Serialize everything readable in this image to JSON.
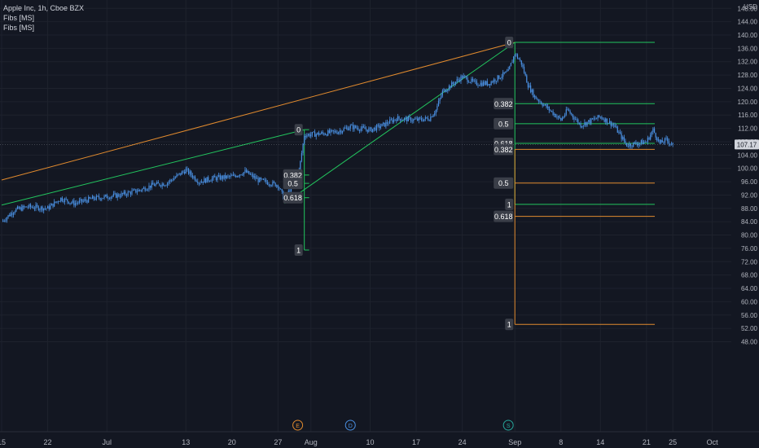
{
  "legend": {
    "symbol": "Apple Inc, 1h, Cboe BZX",
    "studies": [
      "Fibs [MS]",
      "Fibs [MS]"
    ]
  },
  "colors": {
    "background": "#131722",
    "candle": "#4a90e2",
    "fib_green": "#22c55e",
    "fib_orange": "#e08a2e",
    "label_bg": "#3a3e48",
    "axis_text": "#b2b5be",
    "price_tag_bg": "#d1d4dc"
  },
  "axis": {
    "currency": "USD",
    "last_price_label": "107.17",
    "y_ticks": [
      "148.00",
      "144.00",
      "140.00",
      "136.00",
      "132.00",
      "128.00",
      "124.00",
      "120.00",
      "116.00",
      "112.00",
      "108.00",
      "104.00",
      "100.00",
      "96.00",
      "92.00",
      "88.00",
      "84.00",
      "80.00",
      "76.00",
      "72.00",
      "68.00",
      "64.00",
      "60.00",
      "56.00",
      "52.00",
      "48.00"
    ],
    "x_ticks": [
      "15",
      "22",
      "Jul",
      "13",
      "20",
      "27",
      "Aug",
      "10",
      "17",
      "24",
      "Sep",
      "8",
      "14",
      "21",
      "25",
      "Oct"
    ]
  },
  "event_markers": [
    {
      "letter": "E",
      "date": "Jul 30",
      "color": "#e08a2e"
    },
    {
      "letter": "D",
      "date": "Aug 7",
      "color": "#4a90e2"
    },
    {
      "letter": "S",
      "date": "Aug 31",
      "color": "#26a69a"
    }
  ],
  "fib_labels": {
    "set1": {
      "zero": "0",
      "l382": "0.382",
      "l5": "0.5",
      "l618": "0.618",
      "one": "1"
    },
    "set2_green": {
      "zero": "0",
      "l382": "0.382",
      "l5": "0.5",
      "l618": "0.618",
      "one": "1"
    },
    "set2_orange": {
      "l382": "0.382",
      "l5": "0.5",
      "l618": "0.618",
      "one": "1"
    }
  },
  "chart_data": {
    "type": "line",
    "instrument": "Apple Inc, 1h, Cboe BZX",
    "ylabel": "USD",
    "ylim": [
      46,
      148
    ],
    "x_range": [
      "Jun 15",
      "Oct 3"
    ],
    "grid": true,
    "price_path": [
      {
        "x": "Jun 15",
        "y": 84.0
      },
      {
        "x": "Jun 17",
        "y": 87.5
      },
      {
        "x": "Jun 19",
        "y": 88.5
      },
      {
        "x": "Jun 22",
        "y": 88.0
      },
      {
        "x": "Jun 24",
        "y": 91.0
      },
      {
        "x": "Jun 26",
        "y": 89.5
      },
      {
        "x": "Jun 29",
        "y": 91.0
      },
      {
        "x": "Jul 1",
        "y": 91.5
      },
      {
        "x": "Jul 3",
        "y": 92.0
      },
      {
        "x": "Jul 6",
        "y": 93.5
      },
      {
        "x": "Jul 8",
        "y": 95.0
      },
      {
        "x": "Jul 10",
        "y": 95.5
      },
      {
        "x": "Jul 13",
        "y": 99.5
      },
      {
        "x": "Jul 15",
        "y": 96.0
      },
      {
        "x": "Jul 17",
        "y": 97.0
      },
      {
        "x": "Jul 20",
        "y": 97.5
      },
      {
        "x": "Jul 22",
        "y": 99.0
      },
      {
        "x": "Jul 24",
        "y": 96.5
      },
      {
        "x": "Jul 27",
        "y": 95.0
      },
      {
        "x": "Jul 28",
        "y": 90.5
      },
      {
        "x": "Jul 29",
        "y": 94.5
      },
      {
        "x": "Jul 30",
        "y": 96.5
      },
      {
        "x": "Jul 31",
        "y": 110.0
      },
      {
        "x": "Aug 3",
        "y": 110.5
      },
      {
        "x": "Aug 5",
        "y": 111.0
      },
      {
        "x": "Aug 7",
        "y": 112.5
      },
      {
        "x": "Aug 10",
        "y": 111.5
      },
      {
        "x": "Aug 12",
        "y": 113.0
      },
      {
        "x": "Aug 14",
        "y": 115.0
      },
      {
        "x": "Aug 17",
        "y": 114.5
      },
      {
        "x": "Aug 19",
        "y": 115.0
      },
      {
        "x": "Aug 20",
        "y": 117.5
      },
      {
        "x": "Aug 21",
        "y": 123.0
      },
      {
        "x": "Aug 24",
        "y": 127.5
      },
      {
        "x": "Aug 26",
        "y": 125.5
      },
      {
        "x": "Aug 28",
        "y": 125.5
      },
      {
        "x": "Aug 31",
        "y": 129.0
      },
      {
        "x": "Sep 1",
        "y": 134.5
      },
      {
        "x": "Sep 2",
        "y": 131.5
      },
      {
        "x": "Sep 3",
        "y": 125.0
      },
      {
        "x": "Sep 4",
        "y": 121.5
      },
      {
        "x": "Sep 8",
        "y": 114.5
      },
      {
        "x": "Sep 9",
        "y": 117.5
      },
      {
        "x": "Sep 11",
        "y": 113.0
      },
      {
        "x": "Sep 14",
        "y": 115.5
      },
      {
        "x": "Sep 16",
        "y": 113.0
      },
      {
        "x": "Sep 18",
        "y": 107.0
      },
      {
        "x": "Sep 21",
        "y": 108.0
      },
      {
        "x": "Sep 22",
        "y": 111.5
      },
      {
        "x": "Sep 23",
        "y": 107.5
      },
      {
        "x": "Sep 24",
        "y": 108.5
      },
      {
        "x": "Sep 25",
        "y": 107.17
      }
    ],
    "trend_lines": [
      {
        "color": "orange",
        "from": {
          "x": "Jun 15",
          "y": 96.5
        },
        "to": {
          "x": "Sep 1",
          "y": 137.8
        }
      },
      {
        "color": "green",
        "from": {
          "x": "Jun 15",
          "y": 89.0
        },
        "to": {
          "x": "Jul 31",
          "y": 111.6
        }
      },
      {
        "color": "green",
        "from": {
          "x": "Jul 28",
          "y": 89.5
        },
        "to": {
          "x": "Sep 1",
          "y": 137.8
        }
      }
    ],
    "fib_set1": {
      "anchor_date": "Jul 31",
      "levels": [
        {
          "ratio": "0",
          "price": 111.6
        },
        {
          "ratio": "0.382",
          "price": 98.0
        },
        {
          "ratio": "0.5",
          "price": 95.5
        },
        {
          "ratio": "0.618",
          "price": 91.2
        },
        {
          "ratio": "1",
          "price": 75.5
        }
      ]
    },
    "fib_set2_green": {
      "anchor_date": "Sep 1",
      "levels": [
        {
          "ratio": "0",
          "price": 137.8
        },
        {
          "ratio": "0.382",
          "price": 119.4
        },
        {
          "ratio": "0.5",
          "price": 113.4
        },
        {
          "ratio": "0.618",
          "price": 107.5
        },
        {
          "ratio": "1",
          "price": 89.2
        }
      ]
    },
    "fib_set2_orange": {
      "anchor_date": "Sep 1",
      "levels": [
        {
          "ratio": "0.382",
          "price": 105.7
        },
        {
          "ratio": "0.5",
          "price": 95.6
        },
        {
          "ratio": "0.618",
          "price": 85.6
        },
        {
          "ratio": "1",
          "price": 53.2
        }
      ]
    },
    "last_price": 107.17
  }
}
